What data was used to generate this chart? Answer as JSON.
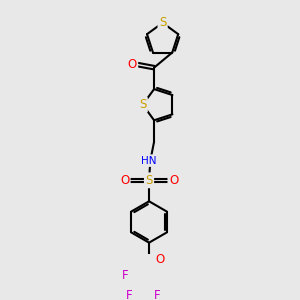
{
  "background_color": "#e8e8e8",
  "atom_colors": {
    "S": "#c8a000",
    "O": "#ff0000",
    "N": "#0000ff",
    "F": "#cc00cc",
    "C": "#000000",
    "H": "#888888"
  },
  "bond_color": "#000000",
  "bond_width": 1.5,
  "figsize": [
    3.0,
    3.0
  ],
  "dpi": 100
}
